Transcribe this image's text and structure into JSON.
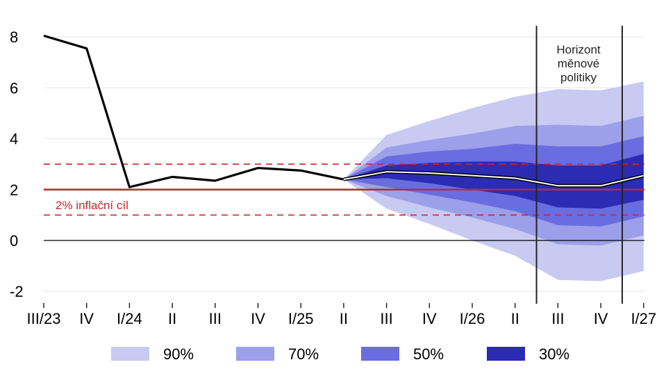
{
  "chart_data": {
    "type": "area",
    "title": "",
    "xlabel": "",
    "ylabel": "",
    "x_categories": [
      "III/23",
      "IV",
      "I/24",
      "II",
      "III",
      "IV",
      "I/25",
      "II",
      "III",
      "IV",
      "I/26",
      "II",
      "III",
      "IV",
      "I/27"
    ],
    "y_ticks": [
      8,
      6,
      4,
      2,
      0,
      -2
    ],
    "ylim": [
      -2.3,
      8.3
    ],
    "grid": "horizontal",
    "actual": [
      8.05,
      7.55,
      2.1,
      2.5,
      2.35,
      2.85,
      2.75,
      2.4
    ],
    "forecast": [
      2.4,
      2.7,
      2.65,
      2.55,
      2.45,
      2.15,
      2.15,
      2.55
    ],
    "forecast_start_index": 7,
    "fan_bands": [
      {
        "name": "90%",
        "color": "#c8caf2",
        "upper": [
          2.4,
          4.15,
          4.7,
          5.2,
          5.65,
          5.95,
          5.9,
          6.25
        ],
        "lower": [
          2.4,
          1.25,
          0.65,
          0.0,
          -0.6,
          -1.55,
          -1.6,
          -1.2
        ]
      },
      {
        "name": "70%",
        "color": "#9c9fe9",
        "upper": [
          2.4,
          3.65,
          3.95,
          4.2,
          4.5,
          4.55,
          4.5,
          4.9
        ],
        "lower": [
          2.4,
          1.75,
          1.3,
          0.9,
          0.45,
          -0.15,
          -0.2,
          0.2
        ]
      },
      {
        "name": "50%",
        "color": "#6a6ddf",
        "upper": [
          2.4,
          3.3,
          3.5,
          3.6,
          3.8,
          3.7,
          3.7,
          4.1
        ],
        "lower": [
          2.4,
          2.1,
          1.8,
          1.5,
          1.15,
          0.6,
          0.55,
          0.95
        ]
      },
      {
        "name": "30%",
        "color": "#2b2cb3",
        "upper": [
          2.4,
          2.95,
          3.05,
          3.1,
          3.1,
          2.95,
          2.95,
          3.4
        ],
        "lower": [
          2.4,
          2.45,
          2.25,
          2.0,
          1.75,
          1.3,
          1.25,
          1.6
        ]
      }
    ],
    "inflation_target": 2,
    "target_band": [
      1,
      3
    ],
    "target_label": "2% inflační cíl",
    "policy_horizon_label_lines": [
      "Horizont",
      "měnové",
      "politiky"
    ],
    "policy_horizon_range": [
      11.5,
      13.5
    ],
    "legend": [
      "90%",
      "70%",
      "50%",
      "30%"
    ],
    "legend_placement": "bottom",
    "colors": {
      "actual_line": "#000000",
      "target": "#c8262e",
      "grid": "#e6e6e6",
      "vertical_lines": "#222222"
    }
  }
}
